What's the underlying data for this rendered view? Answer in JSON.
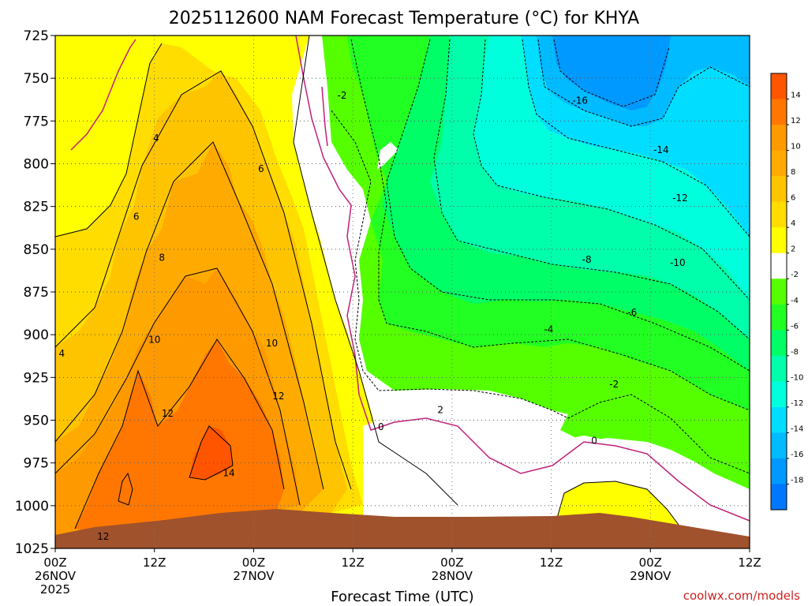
{
  "chart_data": {
    "type": "heatmap",
    "title": "2025112600 NAM Forecast Temperature (°C) for KHYA",
    "xlabel": "Forecast Time (UTC)",
    "ylabel": "",
    "credit": "coolwx.com/models",
    "x_ticks": [
      {
        "hour": 0,
        "line1": "00Z",
        "line2": "26NOV",
        "line3": "2025"
      },
      {
        "hour": 12,
        "line1": "12Z",
        "line2": "",
        "line3": ""
      },
      {
        "hour": 24,
        "line1": "00Z",
        "line2": "27NOV",
        "line3": ""
      },
      {
        "hour": 36,
        "line1": "12Z",
        "line2": "",
        "line3": ""
      },
      {
        "hour": 48,
        "line1": "00Z",
        "line2": "28NOV",
        "line3": ""
      },
      {
        "hour": 60,
        "line1": "12Z",
        "line2": "",
        "line3": ""
      },
      {
        "hour": 72,
        "line1": "00Z",
        "line2": "29NOV",
        "line3": ""
      },
      {
        "hour": 84,
        "line1": "12Z",
        "line2": "",
        "line3": ""
      }
    ],
    "xlim": [
      0,
      84
    ],
    "y_ticks": [
      725,
      750,
      775,
      800,
      825,
      850,
      875,
      900,
      925,
      950,
      975,
      1000,
      1025
    ],
    "ylim": [
      725,
      1025
    ],
    "y_reversed": true,
    "grid": "dotted",
    "colorbar": {
      "position": "right",
      "labels": [
        "14",
        "12",
        "10",
        "8",
        "6",
        "4",
        "2",
        "-2",
        "-4",
        "-6",
        "-8",
        "-10",
        "-12",
        "-14",
        "-16",
        "-18"
      ],
      "colors": [
        "#ff5500",
        "#ff7700",
        "#ff9900",
        "#ffaa00",
        "#ffc400",
        "#ffdd00",
        "#ffff00",
        "#ffffff",
        "#55ff00",
        "#22ff22",
        "#00ff66",
        "#00ffaa",
        "#00ffdd",
        "#00ddff",
        "#00bbff",
        "#0099ff",
        "#0077ff"
      ]
    },
    "contour_labels": [
      {
        "text": "4",
        "hour": 12.2,
        "p": 785
      },
      {
        "text": "6",
        "hour": 9.8,
        "p": 831
      },
      {
        "text": "8",
        "hour": 12.9,
        "p": 855
      },
      {
        "text": "10",
        "hour": 12.0,
        "p": 903
      },
      {
        "text": "12",
        "hour": 13.6,
        "p": 946
      },
      {
        "text": "14",
        "hour": 21.0,
        "p": 981
      },
      {
        "text": "12",
        "hour": 5.8,
        "p": 1018
      },
      {
        "text": "6",
        "hour": 24.9,
        "p": 803
      },
      {
        "text": "10",
        "hour": 26.2,
        "p": 905
      },
      {
        "text": "12",
        "hour": 27.0,
        "p": 936
      },
      {
        "text": "4",
        "hour": 0.8,
        "p": 911
      },
      {
        "text": "-2",
        "hour": 34.7,
        "p": 760
      },
      {
        "text": "2",
        "hour": 46.6,
        "p": 944
      },
      {
        "text": "0",
        "hour": 39.4,
        "p": 954
      },
      {
        "text": "-4",
        "hour": 59.7,
        "p": 897
      },
      {
        "text": "-8",
        "hour": 64.3,
        "p": 856
      },
      {
        "text": "-6",
        "hour": 69.8,
        "p": 887
      },
      {
        "text": "-10",
        "hour": 75.3,
        "p": 858
      },
      {
        "text": "-12",
        "hour": 75.6,
        "p": 820
      },
      {
        "text": "-14",
        "hour": 73.3,
        "p": 792
      },
      {
        "text": "-16",
        "hour": 63.5,
        "p": 763
      },
      {
        "text": "-2",
        "hour": 67.6,
        "p": 929
      },
      {
        "text": "0",
        "hour": 65.2,
        "p": 962
      }
    ],
    "terrain_color": "#a0522d"
  }
}
